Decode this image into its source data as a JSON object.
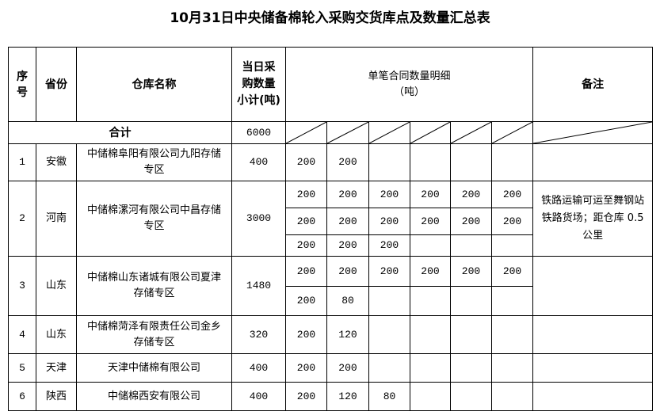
{
  "title": "10月31日中央储备棉轮入采购交货库点及数量汇总表",
  "headers": {
    "seq": "序号",
    "province": "省份",
    "warehouse": "仓库名称",
    "subtotal": "当日采购数量小计(吨)",
    "details": "单笔合同数量明细",
    "details_unit": "（吨）",
    "remark": "备注"
  },
  "total": {
    "label": "合计",
    "value": "6000"
  },
  "rows": [
    {
      "seq": "1",
      "province": "安徽",
      "warehouse": "中储棉阜阳有限公司九阳存储专区",
      "subtotal": "400",
      "details": [
        [
          "200",
          "200"
        ]
      ],
      "remark": ""
    },
    {
      "seq": "2",
      "province": "河南",
      "warehouse": "中储棉漯河有限公司中昌存储专区",
      "subtotal": "3000",
      "details": [
        [
          "200",
          "200",
          "200",
          "200",
          "200",
          "200"
        ],
        [
          "200",
          "200",
          "200",
          "200",
          "200",
          "200"
        ],
        [
          "200",
          "200",
          "200"
        ]
      ],
      "remark": "铁路运输可运至舞钢站铁路货场；距仓库 0.5 公里"
    },
    {
      "seq": "3",
      "province": "山东",
      "warehouse": "中储棉山东诸城有限公司夏津存储专区",
      "subtotal": "1480",
      "details": [
        [
          "200",
          "200",
          "200",
          "200",
          "200",
          "200"
        ],
        [
          "200",
          "80"
        ]
      ],
      "remark": ""
    },
    {
      "seq": "4",
      "province": "山东",
      "warehouse": "中储棉菏泽有限责任公司金乡存储专区",
      "subtotal": "320",
      "details": [
        [
          "200",
          "120"
        ]
      ],
      "remark": ""
    },
    {
      "seq": "5",
      "province": "天津",
      "warehouse": "天津中储棉有限公司",
      "subtotal": "400",
      "details": [
        [
          "200",
          "200"
        ]
      ],
      "remark": ""
    },
    {
      "seq": "6",
      "province": "陕西",
      "warehouse": "中储棉西安有限公司",
      "subtotal": "400",
      "details": [
        [
          "200",
          "120",
          "80"
        ]
      ],
      "remark": ""
    }
  ]
}
